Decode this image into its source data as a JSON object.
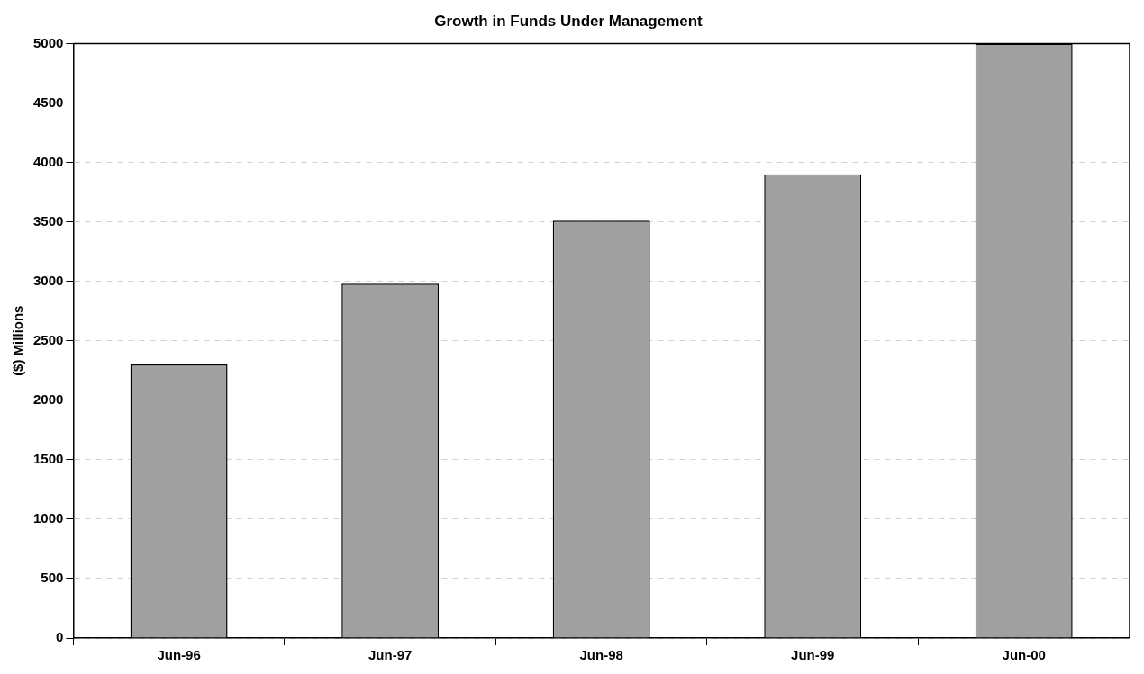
{
  "chart_data": {
    "type": "bar",
    "title": "Growth in Funds Under Management",
    "ylabel": "($) Millions",
    "categories": [
      "Jun-96",
      "Jun-97",
      "Jun-98",
      "Jun-99",
      "Jun-00"
    ],
    "values": [
      2300,
      2980,
      3510,
      3900,
      5000
    ],
    "color": "#a0a0a0",
    "ylim": [
      0,
      5000
    ],
    "yticks": [
      0,
      500,
      1000,
      1500,
      2000,
      2500,
      3000,
      3500,
      4000,
      4500,
      5000
    ],
    "grid": "y"
  }
}
